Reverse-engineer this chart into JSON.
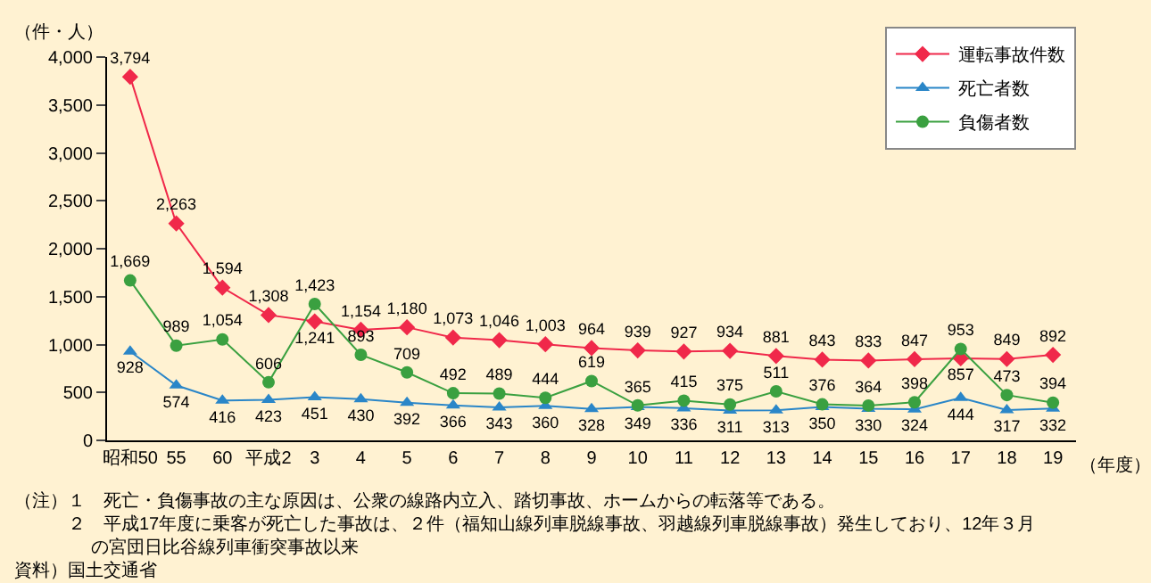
{
  "chart_data": {
    "type": "line",
    "ylabel": "（件・人）",
    "xlabel": "（年度）",
    "categories": [
      "昭和50",
      "55",
      "60",
      "平成2",
      "3",
      "4",
      "5",
      "6",
      "7",
      "8",
      "9",
      "10",
      "11",
      "12",
      "13",
      "14",
      "15",
      "16",
      "17",
      "18",
      "19"
    ],
    "series": [
      {
        "name": "運転事故件数",
        "color": "#f0284a",
        "marker": "diamond",
        "values": [
          3794,
          2263,
          1594,
          1308,
          1241,
          1154,
          1180,
          1073,
          1046,
          1003,
          964,
          939,
          927,
          934,
          881,
          843,
          833,
          847,
          857,
          849,
          892
        ],
        "value_labels": [
          "3,794",
          "2,263",
          "1,594",
          "1,308",
          "1,241",
          "1,154",
          "1,180",
          "1,073",
          "1,046",
          "1,003",
          "964",
          "939",
          "927",
          "934",
          "881",
          "843",
          "833",
          "847",
          "857",
          "849",
          "892"
        ]
      },
      {
        "name": "死亡者数",
        "color": "#2a86c8",
        "marker": "triangle",
        "values": [
          928,
          574,
          416,
          423,
          451,
          430,
          392,
          366,
          343,
          360,
          328,
          349,
          336,
          311,
          313,
          350,
          330,
          324,
          444,
          317,
          332
        ],
        "value_labels": [
          "928",
          "574",
          "416",
          "423",
          "451",
          "430",
          "392",
          "366",
          "343",
          "360",
          "328",
          "349",
          "336",
          "311",
          "313",
          "350",
          "330",
          "324",
          "444",
          "317",
          "332"
        ]
      },
      {
        "name": "負傷者数",
        "color": "#3aa040",
        "marker": "circle",
        "values": [
          1669,
          989,
          1054,
          606,
          1423,
          893,
          709,
          492,
          489,
          444,
          619,
          365,
          415,
          375,
          511,
          376,
          364,
          398,
          953,
          473,
          394
        ],
        "value_labels": [
          "1,669",
          "989",
          "1,054",
          "606",
          "1,423",
          "893",
          "709",
          "492",
          "489",
          "444",
          "619",
          "365",
          "415",
          "375",
          "511",
          "376",
          "364",
          "398",
          "953",
          "473",
          "394"
        ]
      }
    ],
    "ylim": [
      0,
      4000
    ],
    "yticks": [
      0,
      {
        "value": 500,
        "label": "500"
      },
      {
        "value": 1000,
        "label": "1,000"
      },
      {
        "value": 1500,
        "label": "1,500"
      },
      {
        "value": 2000,
        "label": "2,000"
      },
      {
        "value": 2500,
        "label": "2,500"
      },
      {
        "value": 3000,
        "label": "3,000"
      },
      {
        "value": 3500,
        "label": "3,500"
      },
      {
        "value": 4000,
        "label": "4,000"
      }
    ],
    "legend": "top right",
    "annotations": [
      "（注）１　死亡・負傷事故の主な原因は、公衆の線路内立入、踏切事故、ホームからの転落等である。",
      "　　　２　平成17年度に乗客が死亡した事故は、２件（福知山線列車脱線事故、羽越線列車脱線事故）発生しており、12年３月の宮団日比谷線列車衝突事故以来",
      "資料）国土交通省"
    ]
  }
}
